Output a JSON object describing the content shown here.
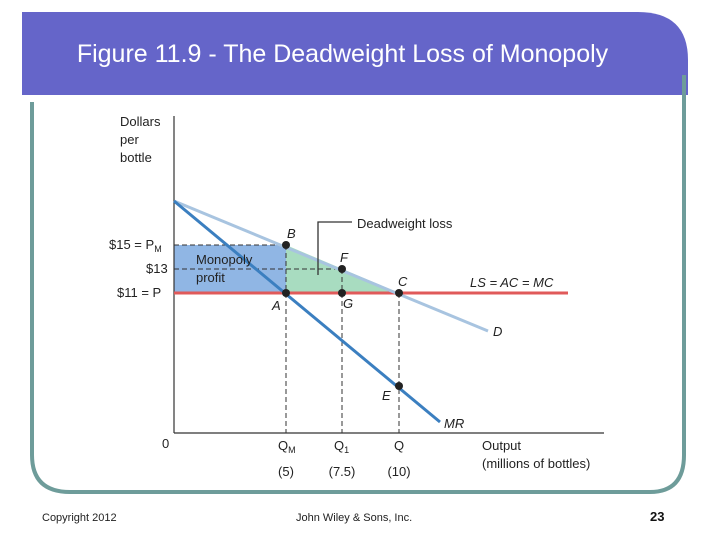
{
  "title": "Figure 11.9 - The Deadweight Loss of Monopoly",
  "colors": {
    "title_bar": "#6565c9",
    "frame_border": "#6e9c9a",
    "demand": "#a8c4e0",
    "marginal_revenue": "#3b7fc0",
    "cost_line": "#e05a5a",
    "monopoly_profit": "#90b6e4",
    "deadweight_loss": "#a8dcc0"
  },
  "diagram": {
    "y_axis_label": [
      "Dollars",
      "per",
      "bottle"
    ],
    "origin_label": "0",
    "x_axis_label": [
      "Output",
      "(millions of bottles)"
    ],
    "prices": {
      "pm": {
        "label_prefix": "$15 = P",
        "label_sub": "M",
        "value": 15
      },
      "mid": {
        "label": "$13",
        "value": 13
      },
      "p": {
        "label": "$11 = P",
        "value": 11
      }
    },
    "quantities": [
      {
        "name": "qm",
        "label": "Q",
        "sub": "M",
        "value_label": "(5)",
        "value": 5
      },
      {
        "name": "q1",
        "label": "Q",
        "sub": "1",
        "value_label": "(7.5)",
        "value": 7.5
      },
      {
        "name": "q",
        "label": "Q",
        "sub": "",
        "value_label": "(10)",
        "value": 10
      }
    ],
    "points": {
      "A": "A",
      "B": "B",
      "C": "C",
      "E": "E",
      "F": "F",
      "G": "G"
    },
    "curves": {
      "demand": "D",
      "marginal_revenue": "MR",
      "cost": "LS = AC = MC"
    },
    "regions": {
      "monopoly_profit": [
        "Monopoly",
        "profit"
      ],
      "deadweight_loss": "Deadweight loss"
    }
  },
  "footer": {
    "copyright": "Copyright 2012",
    "publisher": "John Wiley & Sons, Inc.",
    "page_number": "23"
  }
}
